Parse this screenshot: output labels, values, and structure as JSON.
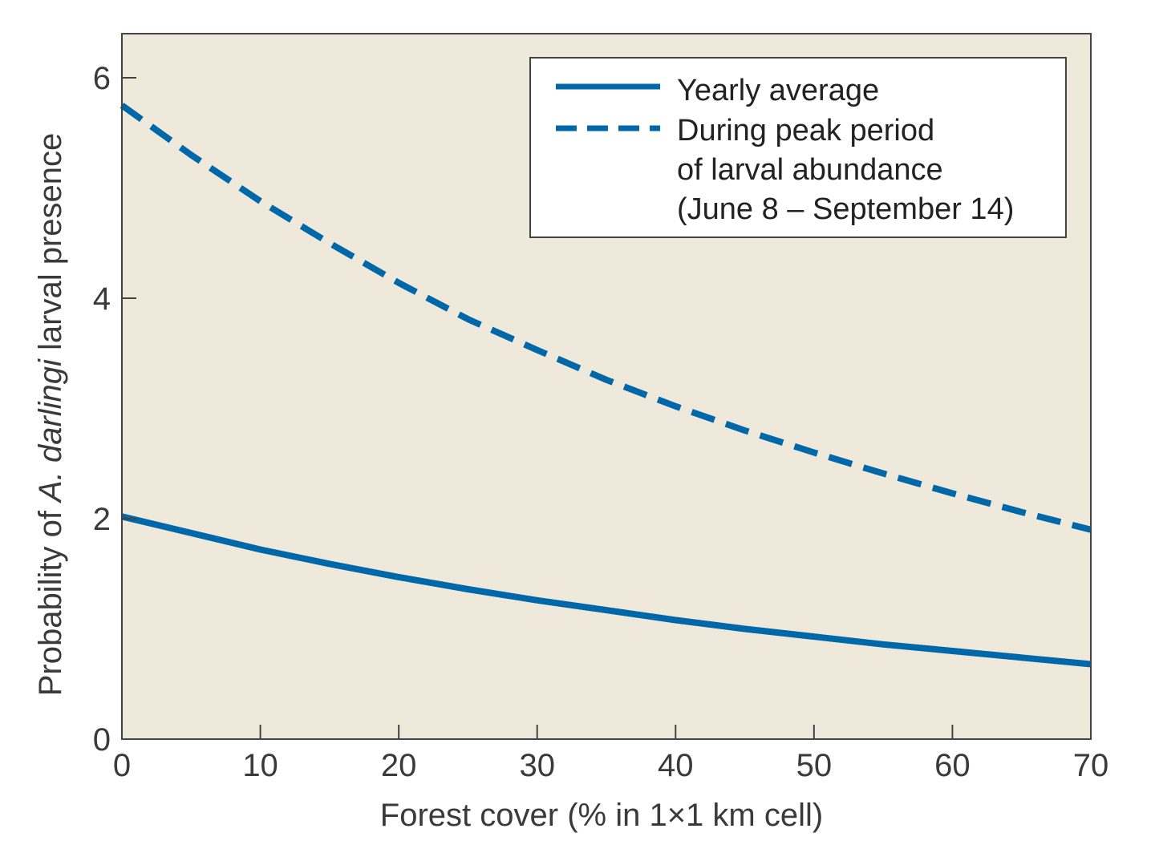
{
  "chart_data": {
    "type": "line",
    "title": "",
    "xlabel": "Forest cover (% in 1×1 km cell)",
    "ylabel_parts": [
      "Probability of ",
      "A. darlingi",
      " larval presence"
    ],
    "xlim": [
      0,
      70
    ],
    "ylim": [
      0,
      6.4
    ],
    "x_ticks": [
      0,
      10,
      20,
      30,
      40,
      50,
      60,
      70
    ],
    "x_tick_labels": [
      "0",
      "10",
      "20",
      "30",
      "40",
      "50",
      "60",
      "70"
    ],
    "y_ticks": [
      0,
      2,
      4,
      6
    ],
    "y_tick_labels": [
      "0",
      "2",
      "4",
      "6"
    ],
    "grid": false,
    "plot_background": "#efe9dc",
    "legend_position": "top-right",
    "x": [
      0,
      5,
      10,
      15,
      20,
      25,
      30,
      35,
      40,
      45,
      50,
      55,
      60,
      65,
      70
    ],
    "series": [
      {
        "name": "Yearly average",
        "style": "solid",
        "color": "#0068a9",
        "values": [
          2.02,
          1.87,
          1.72,
          1.59,
          1.47,
          1.36,
          1.26,
          1.17,
          1.08,
          1.0,
          0.93,
          0.86,
          0.8,
          0.74,
          0.68
        ]
      },
      {
        "name": "During peak period of larval abundance (June 8 – September 14)",
        "style": "dashed",
        "color": "#0068a9",
        "values": [
          5.75,
          5.3,
          4.88,
          4.5,
          4.14,
          3.81,
          3.53,
          3.26,
          3.02,
          2.8,
          2.6,
          2.41,
          2.23,
          2.06,
          1.9
        ]
      }
    ]
  },
  "legend": {
    "items": [
      {
        "lines": [
          "Yearly average"
        ]
      },
      {
        "lines": [
          "During peak period",
          "of larval abundance",
          "(June 8 – September 14)"
        ]
      }
    ]
  }
}
